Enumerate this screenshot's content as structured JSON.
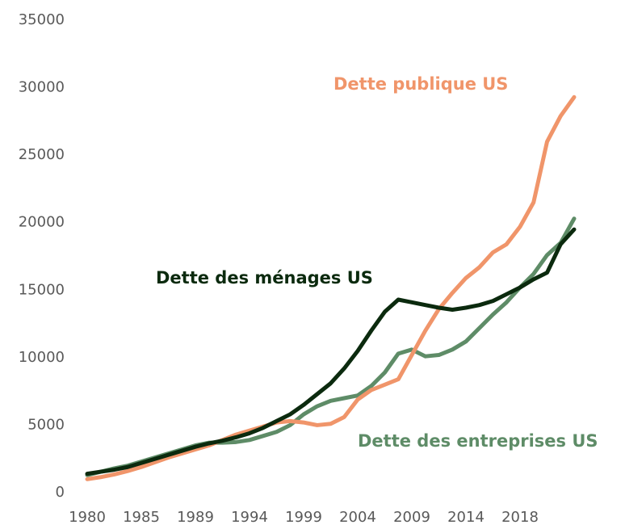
{
  "chart_data": {
    "type": "line",
    "categories": [
      "1980",
      null,
      null,
      null,
      "1985",
      null,
      null,
      null,
      "1989",
      null,
      null,
      null,
      "1994",
      null,
      null,
      null,
      "1999",
      null,
      null,
      null,
      "2004",
      null,
      null,
      null,
      "2009",
      null,
      null,
      null,
      "2014",
      null,
      null,
      null,
      "2018",
      null,
      null,
      null,
      null
    ],
    "series": [
      {
        "name": "Dette des ménages US",
        "color": "#0b2a0e",
        "values": [
          1400,
          1550,
          1700,
          1900,
          2200,
          2500,
          2800,
          3100,
          3400,
          3650,
          3850,
          4100,
          4400,
          4800,
          5300,
          5800,
          6500,
          7300,
          8100,
          9200,
          10500,
          12000,
          13400,
          14300,
          14100,
          13900,
          13700,
          13550,
          13700,
          13900,
          14200,
          14700,
          15200,
          15800,
          16300,
          18400,
          19500
        ]
      },
      {
        "name": "Dette publique US",
        "color": "#f0956a",
        "values": [
          1000,
          1150,
          1350,
          1600,
          1900,
          2250,
          2600,
          2900,
          3200,
          3500,
          3900,
          4300,
          4600,
          4900,
          5200,
          5300,
          5200,
          5000,
          5100,
          5600,
          6900,
          7600,
          8000,
          8400,
          10200,
          12000,
          13600,
          14800,
          15900,
          16700,
          17800,
          18400,
          19700,
          21500,
          26000,
          27900,
          29300
        ]
      },
      {
        "name": "Dette des entreprises US",
        "color": "#5e8c67",
        "values": [
          1300,
          1550,
          1800,
          2000,
          2300,
          2600,
          2900,
          3200,
          3500,
          3700,
          3700,
          3750,
          3900,
          4200,
          4500,
          5000,
          5800,
          6400,
          6800,
          7000,
          7200,
          7900,
          8900,
          10300,
          10600,
          10100,
          10200,
          10600,
          11200,
          12200,
          13200,
          14100,
          15200,
          16200,
          17600,
          18500,
          20300
        ]
      }
    ],
    "ylim": [
      0,
      35000
    ],
    "yticks": [
      0,
      5000,
      10000,
      15000,
      20000,
      25000,
      30000,
      35000
    ]
  }
}
